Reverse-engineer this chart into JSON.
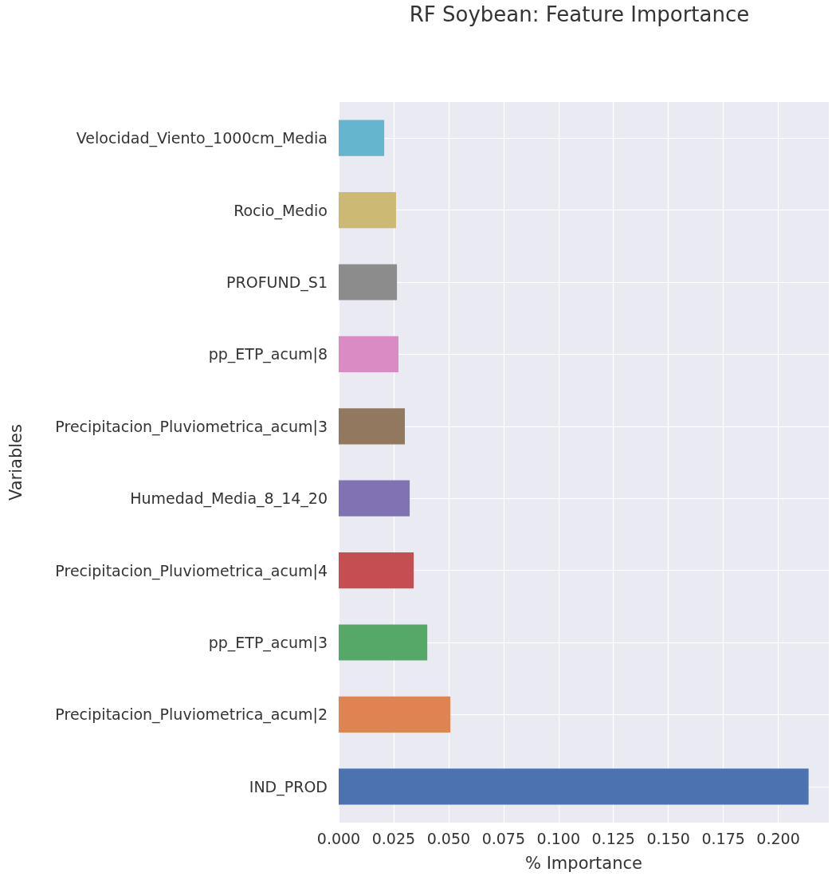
{
  "chart_data": {
    "type": "bar",
    "orientation": "horizontal",
    "title": "RF Soybean: Feature Importance",
    "xlabel": "% Importance",
    "ylabel": "Variables",
    "categories": [
      "Velocidad_Viento_1000cm_Media",
      "Rocio_Medio",
      "PROFUND_S1",
      "pp_ETP_acum|8",
      "Precipitacion_Pluviometrica_acum|3",
      "Humedad_Media_8_14_20",
      "Precipitacion_Pluviometrica_acum|4",
      "pp_ETP_acum|3",
      "Precipitacion_Pluviometrica_acum|2",
      "IND_PROD"
    ],
    "values": [
      0.0207,
      0.0261,
      0.0265,
      0.0272,
      0.0301,
      0.0323,
      0.0341,
      0.0403,
      0.0508,
      0.2138
    ],
    "colors": [
      "#64b5cd",
      "#ccb974",
      "#8c8c8c",
      "#da8bc3",
      "#937860",
      "#8172b3",
      "#c44e52",
      "#55a868",
      "#dd8452",
      "#4c72b0"
    ],
    "xlim": [
      0,
      0.223
    ],
    "xticks": [
      {
        "value": 0,
        "label": "0.000"
      },
      {
        "value": 0.025,
        "label": "0.025"
      },
      {
        "value": 0.05,
        "label": "0.050"
      },
      {
        "value": 0.075,
        "label": "0.075"
      },
      {
        "value": 0.1,
        "label": "0.100"
      },
      {
        "value": 0.125,
        "label": "0.125"
      },
      {
        "value": 0.15,
        "label": "0.150"
      },
      {
        "value": 0.175,
        "label": "0.175"
      },
      {
        "value": 0.2,
        "label": "0.200"
      }
    ],
    "grid": true
  }
}
